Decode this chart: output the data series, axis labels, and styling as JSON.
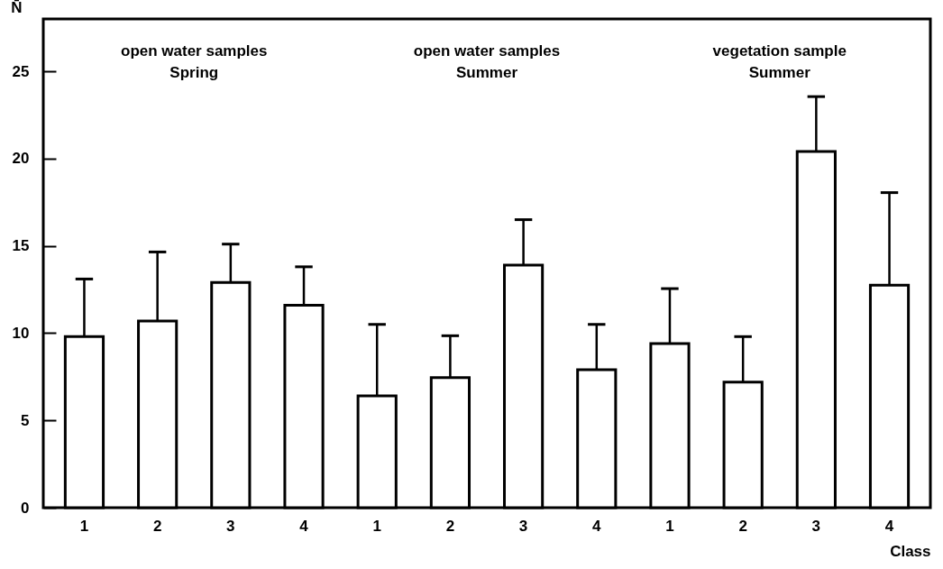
{
  "chart_data": {
    "type": "bar",
    "ylabel": "N̄",
    "xlabel": "Class",
    "categories": [
      "1",
      "2",
      "3",
      "4",
      "1",
      "2",
      "3",
      "4",
      "1",
      "2",
      "3",
      "4"
    ],
    "values": [
      9.8,
      10.7,
      12.9,
      11.6,
      6.4,
      7.45,
      13.9,
      7.9,
      9.4,
      7.2,
      20.4,
      12.75
    ],
    "errors": [
      [
        9.8,
        13.1
      ],
      [
        10.7,
        14.65
      ],
      [
        12.9,
        15.1
      ],
      [
        11.6,
        13.8
      ],
      [
        6.4,
        10.5
      ],
      [
        7.45,
        9.85
      ],
      [
        13.9,
        16.5
      ],
      [
        7.9,
        10.5
      ],
      [
        9.4,
        12.55
      ],
      [
        7.2,
        9.8
      ],
      [
        20.4,
        23.55
      ],
      [
        12.75,
        18.05
      ]
    ],
    "color": "#ffffff",
    "ylim": [
      0,
      28
    ],
    "yticks": [
      0,
      5,
      10,
      15,
      20,
      25
    ],
    "annotations": [
      "open water samples\nSpring",
      "open water samples\nSummer",
      "vegetation sample\nSummer"
    ]
  }
}
